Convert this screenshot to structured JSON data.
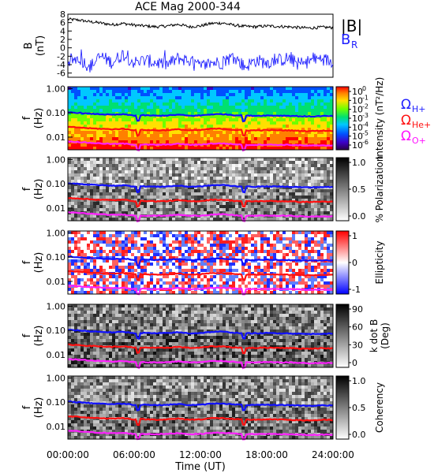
{
  "title": "ACE Mag 2000-344",
  "xaxis": {
    "label": "Time (UT)",
    "ticks": [
      "00:00:00",
      "06:00:00",
      "12:00:00",
      "18:00:00",
      "24:00:00"
    ],
    "tick_hours": [
      0,
      6,
      12,
      18,
      24
    ]
  },
  "freq_axis": {
    "label": "f",
    "units": "(Hz)",
    "ticks": [
      "1.00",
      "0.10",
      "0.01"
    ],
    "tick_values": [
      1.0,
      0.1,
      0.01
    ]
  },
  "gyro_legend": {
    "h": {
      "base": "Ω",
      "sub": "H+",
      "color": "#2020ff"
    },
    "he": {
      "base": "Ω",
      "sub": "He+",
      "color": "#ff1010"
    },
    "o": {
      "base": "Ω",
      "sub": "O+",
      "color": "#ff10ff"
    }
  },
  "colors": {
    "h_line": "#1010ff",
    "he_line": "#ff1010",
    "o_line": "#ff20ff",
    "b_total": "#000000",
    "b_r": "#1010ff"
  },
  "chart_data": [
    {
      "type": "line",
      "panel": "magnetic-field",
      "ylabel": "B",
      "yunits": "(nT)",
      "ylim": [
        -7,
        8
      ],
      "yticks": [
        "8",
        "6",
        "4",
        "2",
        "0",
        "-2",
        "-4",
        "-6"
      ],
      "ytick_values": [
        8,
        6,
        4,
        2,
        0,
        -2,
        -4,
        -6
      ],
      "xlim_hours": [
        0,
        24
      ],
      "legend": [
        {
          "label": "|B|",
          "color": "#000000"
        },
        {
          "label": "B",
          "sub": "R",
          "color": "#2020ff"
        }
      ],
      "series": [
        {
          "name": "|B|",
          "color": "#000000",
          "x_hours": [
            0,
            1,
            2,
            3,
            4,
            5,
            6,
            7,
            8,
            9,
            10,
            11,
            12,
            13,
            14,
            15,
            16,
            17,
            18,
            19,
            20,
            21,
            22,
            23,
            24
          ],
          "values": [
            6.8,
            6.6,
            6.2,
            5.9,
            5.5,
            5.8,
            5.4,
            5.2,
            5.0,
            5.2,
            5.6,
            5.0,
            5.2,
            5.8,
            5.9,
            5.4,
            5.1,
            5.0,
            5.2,
            5.1,
            5.0,
            4.8,
            4.7,
            4.9,
            4.8
          ]
        },
        {
          "name": "B_R",
          "color": "#1010ff",
          "x_hours": [
            0,
            1,
            2,
            3,
            4,
            5,
            6,
            7,
            8,
            9,
            10,
            11,
            12,
            13,
            14,
            15,
            16,
            17,
            18,
            19,
            20,
            21,
            22,
            23,
            24
          ],
          "values": [
            -3.0,
            -2.5,
            -4.5,
            -2.0,
            -3.5,
            -1.5,
            -3.5,
            -3.0,
            -3.5,
            -4.0,
            -2.5,
            -3.0,
            -4.5,
            -3.5,
            -3.5,
            -2.0,
            -4.5,
            -3.0,
            -3.5,
            -3.0,
            -2.5,
            -4.0,
            -3.0,
            -2.5,
            -3.5
          ]
        }
      ]
    },
    {
      "type": "heatmap",
      "panel": "intensity",
      "ylabel": "f",
      "yunits": "(Hz)",
      "yscale": "log",
      "ylim": [
        0.003,
        1.2
      ],
      "colorbar": {
        "label": "Intensity (nT²/Hz)",
        "scale": "log",
        "palette": "rainbow",
        "ticks": [
          "10",
          "10",
          "10",
          "10",
          "10",
          "10",
          "10"
        ],
        "exponents": [
          "0",
          "-1",
          "-2",
          "-3",
          "-4",
          "-5",
          "-6"
        ],
        "range": [
          1e-06,
          1
        ]
      }
    },
    {
      "type": "heatmap",
      "panel": "polarization",
      "ylabel": "f",
      "yunits": "(Hz)",
      "yscale": "log",
      "ylim": [
        0.003,
        1.2
      ],
      "colorbar": {
        "label": "% Polarization",
        "palette": "gray",
        "ticks": [
          "1.0",
          "0.5",
          "0.0"
        ],
        "range": [
          0,
          1
        ]
      }
    },
    {
      "type": "heatmap",
      "panel": "ellipticity",
      "ylabel": "f",
      "yunits": "(Hz)",
      "yscale": "log",
      "ylim": [
        0.003,
        1.2
      ],
      "colorbar": {
        "label": "Ellipticity",
        "palette": "blue-white-red",
        "ticks": [
          "1",
          "0",
          "-1"
        ],
        "range": [
          -1,
          1
        ]
      }
    },
    {
      "type": "heatmap",
      "panel": "wave-normal",
      "ylabel": "f",
      "yunits": "(Hz)",
      "yscale": "log",
      "ylim": [
        0.003,
        1.2
      ],
      "colorbar": {
        "label": "k dot B",
        "units": "(Deg)",
        "palette": "gray",
        "ticks": [
          "90",
          "60",
          "30",
          "0"
        ],
        "range": [
          0,
          90
        ]
      }
    },
    {
      "type": "heatmap",
      "panel": "coherency",
      "ylabel": "f",
      "yunits": "(Hz)",
      "yscale": "log",
      "ylim": [
        0.003,
        1.2
      ],
      "colorbar": {
        "label": "Coherency",
        "palette": "gray",
        "ticks": [
          "1.0",
          "0.5",
          "0.0"
        ],
        "range": [
          0,
          1
        ]
      }
    },
    {
      "type": "line",
      "panel": "gyrofrequency-overlays",
      "yscale": "log",
      "x_hours": [
        0,
        1,
        2,
        3,
        4,
        5,
        6,
        7,
        8,
        9,
        10,
        11,
        12,
        13,
        14,
        15,
        16,
        17,
        18,
        19,
        20,
        21,
        22,
        23,
        24
      ],
      "series": [
        {
          "name": "Ω H+",
          "color": "#1010ff",
          "values": [
            0.105,
            0.1,
            0.092,
            0.088,
            0.083,
            0.087,
            0.078,
            0.079,
            0.076,
            0.078,
            0.084,
            0.076,
            0.078,
            0.087,
            0.089,
            0.081,
            0.077,
            0.076,
            0.078,
            0.077,
            0.076,
            0.073,
            0.071,
            0.074,
            0.073
          ]
        },
        {
          "name": "Ω He+",
          "color": "#ff1010",
          "values": [
            0.026,
            0.025,
            0.023,
            0.022,
            0.021,
            0.022,
            0.0195,
            0.0198,
            0.019,
            0.0195,
            0.021,
            0.019,
            0.0195,
            0.022,
            0.022,
            0.02,
            0.019,
            0.019,
            0.0195,
            0.0192,
            0.019,
            0.018,
            0.0178,
            0.0185,
            0.0182
          ]
        },
        {
          "name": "Ω O+",
          "color": "#ff20ff",
          "values": [
            0.0066,
            0.0063,
            0.0058,
            0.0055,
            0.0052,
            0.0054,
            0.0049,
            0.0049,
            0.0048,
            0.0049,
            0.0053,
            0.0048,
            0.0049,
            0.0054,
            0.0055,
            0.0051,
            0.0048,
            0.0048,
            0.0049,
            0.0048,
            0.0048,
            0.0046,
            0.0044,
            0.0046,
            0.0045
          ]
        }
      ]
    }
  ]
}
